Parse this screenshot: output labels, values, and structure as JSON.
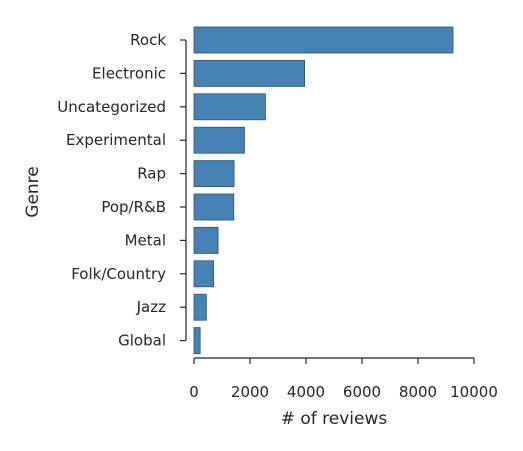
{
  "chart_data": {
    "type": "bar",
    "orientation": "horizontal",
    "categories": [
      "Rock",
      "Electronic",
      "Uncategorized",
      "Experimental",
      "Rap",
      "Pop/R&B",
      "Metal",
      "Folk/Country",
      "Jazz",
      "Global"
    ],
    "values": [
      9250,
      3950,
      2550,
      1800,
      1430,
      1420,
      860,
      700,
      440,
      220
    ],
    "xlabel": "# of reviews",
    "ylabel": "Genre",
    "xlim": [
      0,
      10000
    ],
    "xticks": [
      "0",
      "2000",
      "4000",
      "6000",
      "8000",
      "10000"
    ],
    "grid": false,
    "colors": {
      "bar": "#4682b4"
    }
  }
}
